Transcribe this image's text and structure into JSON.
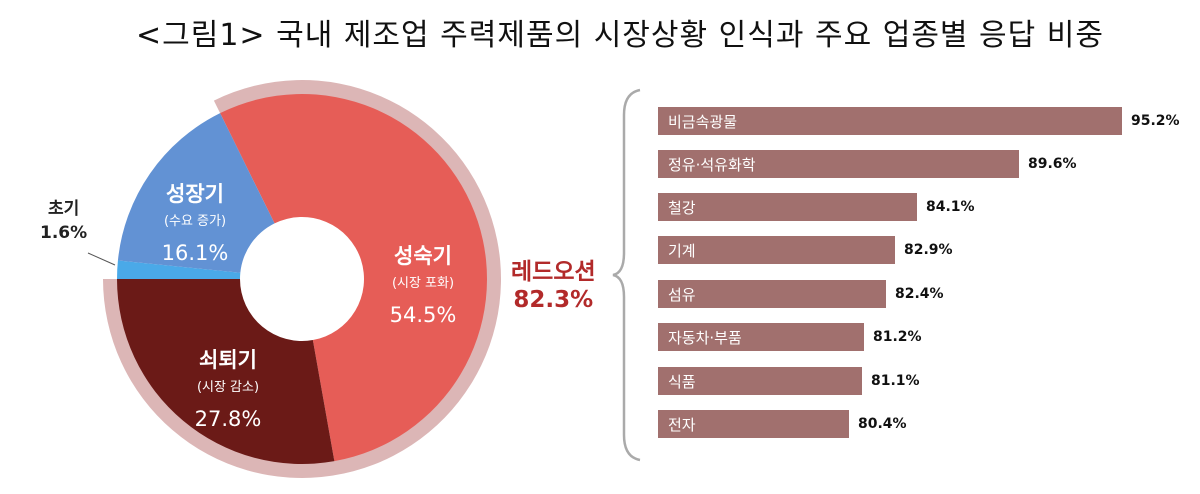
{
  "title": "<그림1> 국내 제조업 주력제품의 시장상황 인식과 주요 업종별 응답 비중",
  "colors": {
    "mature": "#e65d57",
    "decline": "#6b1a17",
    "early": "#4aa9e8",
    "growth": "#6292d4",
    "ring": "#dcb6b6",
    "bar": "#a1706e",
    "red_ocean": "#b22a2a",
    "brace": "#aaaaaa"
  },
  "pie": {
    "segments": [
      {
        "key": "mature",
        "name": "성숙기",
        "sub": "(시장 포화)",
        "value": "54.5%"
      },
      {
        "key": "decline",
        "name": "쇠퇴기",
        "sub": "(시장 감소)",
        "value": "27.8%"
      },
      {
        "key": "early",
        "name": "초기",
        "sub": "",
        "value": "1.6%"
      },
      {
        "key": "growth",
        "name": "성장기",
        "sub": "(수요 증가)",
        "value": "16.1%"
      }
    ]
  },
  "red_ocean": {
    "label": "레드오션",
    "value": "82.3%"
  },
  "bars": [
    {
      "label": "비금속광물",
      "value": "95.2%"
    },
    {
      "label": "정유·석유화학",
      "value": "89.6%"
    },
    {
      "label": "철강",
      "value": "84.1%"
    },
    {
      "label": "기계",
      "value": "82.9%"
    },
    {
      "label": "섬유",
      "value": "82.4%"
    },
    {
      "label": "자동차·부품",
      "value": "81.2%"
    },
    {
      "label": "식품",
      "value": "81.1%"
    },
    {
      "label": "전자",
      "value": "80.4%"
    }
  ],
  "chart_data": [
    {
      "type": "pie",
      "title": "국내 제조업 주력제품의 시장상황 인식",
      "categories": [
        "성숙기 (시장 포화)",
        "쇠퇴기 (시장 감소)",
        "초기",
        "성장기 (수요 증가)"
      ],
      "values": [
        54.5,
        27.8,
        1.6,
        16.1
      ],
      "annotation": {
        "text": "레드오션",
        "value": 82.3,
        "covers": [
          "성숙기",
          "쇠퇴기"
        ]
      },
      "donut": true
    },
    {
      "type": "bar",
      "orientation": "horizontal",
      "title": "주요 업종별 응답 비중 (레드오션)",
      "categories": [
        "비금속광물",
        "정유·석유화학",
        "철강",
        "기계",
        "섬유",
        "자동차·부품",
        "식품",
        "전자"
      ],
      "values": [
        95.2,
        89.6,
        84.1,
        82.9,
        82.4,
        81.2,
        81.1,
        80.4
      ],
      "unit": "%"
    }
  ]
}
